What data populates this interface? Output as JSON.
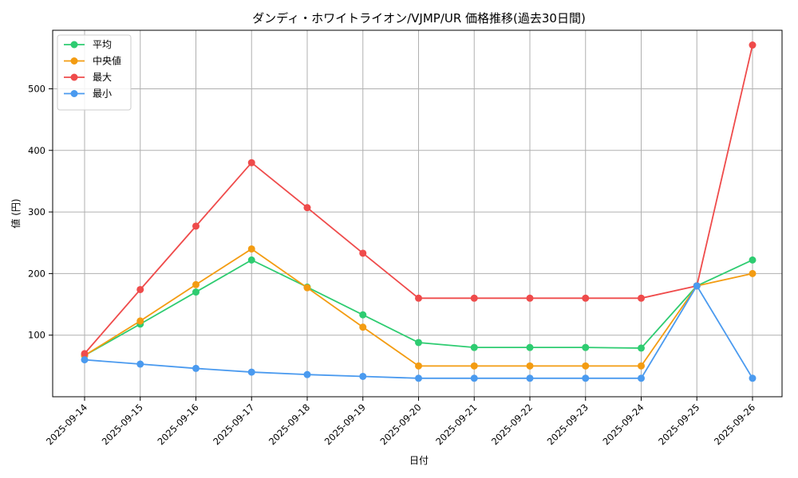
{
  "chart_data": {
    "type": "line",
    "title": "ダンディ・ホワイトライオン/VJMP/UR 価格推移(過去30日間)",
    "xlabel": "日付",
    "ylabel": "値 (円)",
    "categories": [
      "2025-09-14",
      "2025-09-15",
      "2025-09-16",
      "2025-09-17",
      "2025-09-18",
      "2025-09-19",
      "2025-09-20",
      "2025-09-21",
      "2025-09-22",
      "2025-09-23",
      "2025-09-24",
      "2025-09-25",
      "2025-09-26"
    ],
    "ylim": [
      0,
      595
    ],
    "yticks": [
      100,
      200,
      300,
      400,
      500
    ],
    "grid": true,
    "legend_position": "top-left",
    "series": [
      {
        "name": "平均",
        "color": "#2ecc71",
        "values": [
          67,
          118,
          170,
          222,
          178,
          133,
          88,
          80,
          80,
          80,
          79,
          180,
          222
        ]
      },
      {
        "name": "中央値",
        "color": "#f39c12",
        "values": [
          67,
          123,
          182,
          240,
          177,
          113,
          50,
          50,
          50,
          50,
          50,
          180,
          200
        ]
      },
      {
        "name": "最大",
        "color": "#ef4b4b",
        "values": [
          70,
          174,
          277,
          380,
          307,
          233,
          160,
          160,
          160,
          160,
          160,
          180,
          571
        ]
      },
      {
        "name": "最小",
        "color": "#4a9aef",
        "values": [
          60,
          53,
          46,
          40,
          36,
          33,
          30,
          30,
          30,
          30,
          30,
          180,
          30
        ]
      }
    ]
  }
}
